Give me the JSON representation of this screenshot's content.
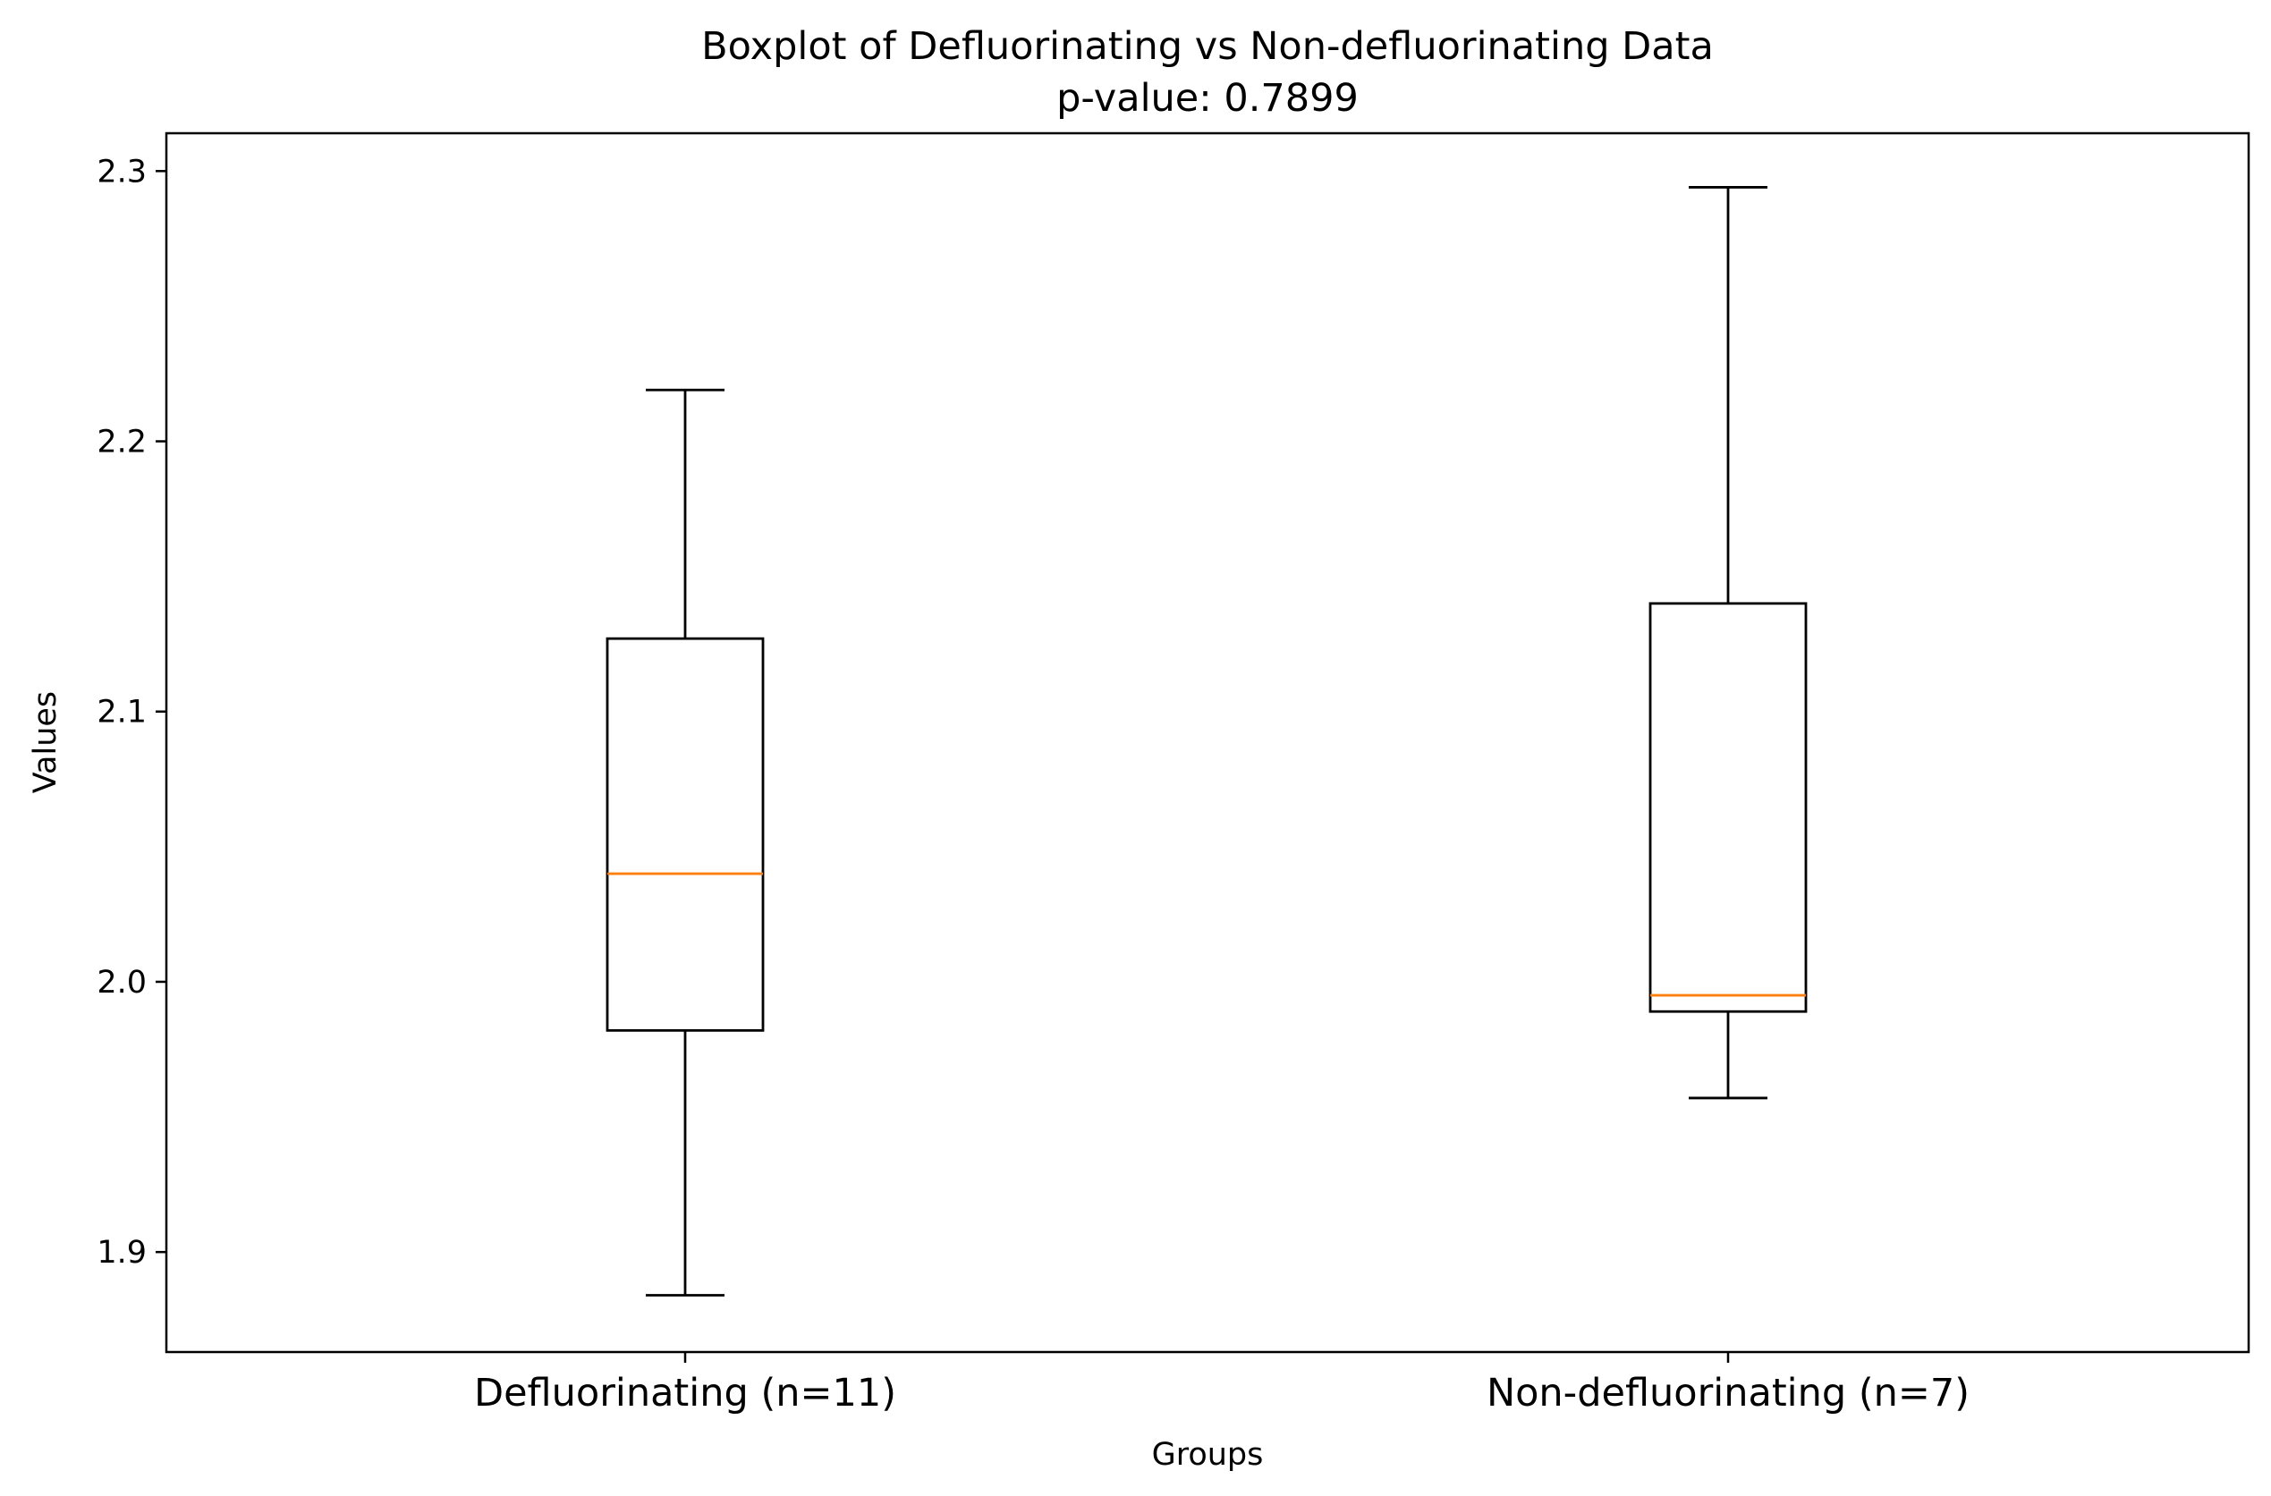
{
  "chart_data": {
    "type": "boxplot",
    "title": "Boxplot of Defluorinating vs Non-defluorinating Data",
    "subtitle": "p-value: 0.7899",
    "xlabel": "Groups",
    "ylabel": "Values",
    "ylim": [
      1.863,
      2.314
    ],
    "yticks": [
      "1.9",
      "2.0",
      "2.1",
      "2.2",
      "2.3"
    ],
    "ytick_values": [
      1.9,
      2.0,
      2.1,
      2.2,
      2.3
    ],
    "grid": false,
    "groups": [
      {
        "label": "Defluorinating (n=11)",
        "whisker_low": 1.884,
        "q1": 1.982,
        "median": 2.04,
        "q3": 2.127,
        "whisker_high": 2.219
      },
      {
        "label": "Non-defluorinating (n=7)",
        "whisker_low": 1.957,
        "q1": 1.989,
        "median": 1.995,
        "q3": 2.14,
        "whisker_high": 2.294
      }
    ],
    "colors": {
      "box": "#000000",
      "median": "#ff7f0e",
      "background": "#ffffff"
    }
  }
}
